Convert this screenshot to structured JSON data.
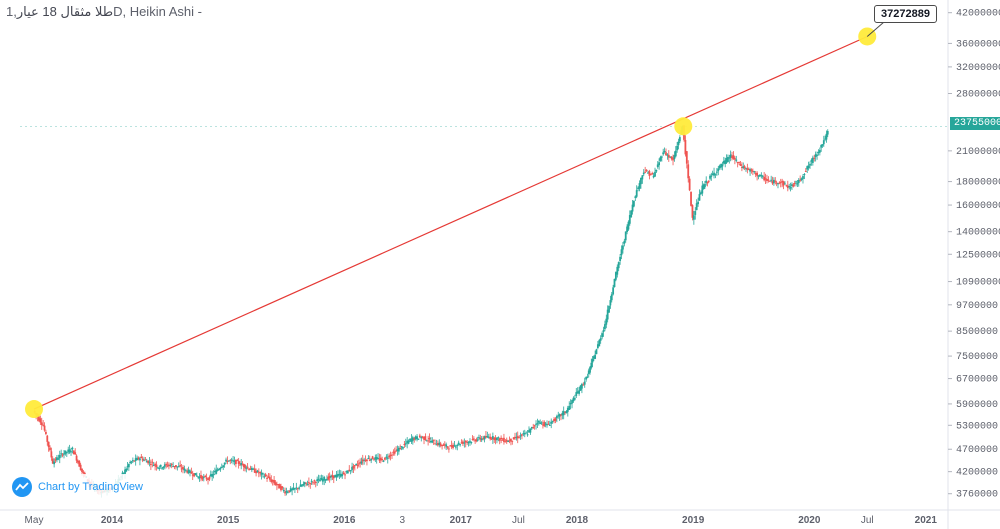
{
  "header": {
    "symbol": "طلا مثقال 18 عیار",
    "interval": "1D",
    "chart_style": "Heikin Ashi",
    "suffix": "-"
  },
  "watermark": {
    "label": "Chart by TradingView",
    "icon": "tradingview-cloud-icon"
  },
  "colors": {
    "up": "#26a69a",
    "down": "#ef5350",
    "trendline": "#e53935",
    "marker": "#ffeb3b",
    "axis_text": "#5d606b",
    "accent": "#2196f3"
  },
  "chart_data": {
    "type": "candlestick",
    "title": "",
    "xlabel": "",
    "ylabel": "",
    "x_ticks": [
      "May",
      "2014",
      "2015",
      "2016",
      "3",
      "2017",
      "Jul",
      "2018",
      "2019",
      "2020",
      "Jul",
      "2021"
    ],
    "y_ticks": [
      3760000,
      4200000,
      4700000,
      5300000,
      5900000,
      6700000,
      7500000,
      8500000,
      9700000,
      10900000,
      12500000,
      14000000,
      16000000,
      18000000,
      21000000,
      23755000,
      28000000,
      32000000,
      36000000,
      42000000
    ],
    "y_scale": "log",
    "last_price": 23755000,
    "trendline": {
      "annotation": 37272889,
      "points": [
        {
          "date": "2013-05",
          "value": 5750000
        },
        {
          "date": "2018-12",
          "value": 23755000
        },
        {
          "date": "2020-07",
          "value": 37272889
        }
      ]
    },
    "series": [
      {
        "x": [
          "2013-05",
          "2013-06",
          "2013-07",
          "2013-08",
          "2013-09",
          "2013-10",
          "2013-11",
          "2013-12",
          "2014-01",
          "2014-02",
          "2014-03",
          "2014-04",
          "2014-05",
          "2014-06",
          "2014-07",
          "2014-08",
          "2014-09",
          "2014-10",
          "2014-11",
          "2014-12",
          "2015-01",
          "2015-02",
          "2015-03",
          "2015-04",
          "2015-05",
          "2015-06",
          "2015-07",
          "2015-08",
          "2015-09",
          "2015-10",
          "2015-11",
          "2015-12",
          "2016-01",
          "2016-02",
          "2016-03",
          "2016-04",
          "2016-05",
          "2016-06",
          "2016-07",
          "2016-08",
          "2016-09",
          "2016-10",
          "2016-11",
          "2016-12",
          "2017-01",
          "2017-02",
          "2017-03",
          "2017-04",
          "2017-05",
          "2017-06",
          "2017-07",
          "2017-08",
          "2017-09",
          "2017-10",
          "2017-11",
          "2017-12",
          "2018-01",
          "2018-02",
          "2018-03",
          "2018-04",
          "2018-05",
          "2018-06",
          "2018-07",
          "2018-08",
          "2018-09",
          "2018-10",
          "2018-11",
          "2018-12",
          "2019-01",
          "2019-02",
          "2019-03",
          "2019-04",
          "2019-05",
          "2019-06",
          "2019-07",
          "2019-08",
          "2019-09",
          "2019-10",
          "2019-11",
          "2019-12",
          "2020-01",
          "2020-02",
          "2020-03"
        ],
        "close": [
          5700000,
          5300000,
          4400000,
          4600000,
          4700000,
          4200000,
          3900000,
          3800000,
          3850000,
          4100000,
          4400000,
          4500000,
          4400000,
          4300000,
          4350000,
          4300000,
          4200000,
          4100000,
          4050000,
          4250000,
          4450000,
          4400000,
          4300000,
          4200000,
          4100000,
          3950000,
          3800000,
          3850000,
          3950000,
          4000000,
          4050000,
          4100000,
          4150000,
          4300000,
          4450000,
          4500000,
          4450000,
          4600000,
          4750000,
          4950000,
          5000000,
          4900000,
          4800000,
          4750000,
          4850000,
          4900000,
          4950000,
          5000000,
          4950000,
          4900000,
          5000000,
          5100000,
          5400000,
          5300000,
          5500000,
          5700000,
          6200000,
          6700000,
          7600000,
          8800000,
          11000000,
          13500000,
          16500000,
          19000000,
          18500000,
          21000000,
          20000000,
          23755000,
          15000000,
          17500000,
          18500000,
          19500000,
          20500000,
          19500000,
          19000000,
          18500000,
          18000000,
          18000000,
          17500000,
          18000000,
          19500000,
          21000000,
          23000000
        ]
      }
    ]
  }
}
